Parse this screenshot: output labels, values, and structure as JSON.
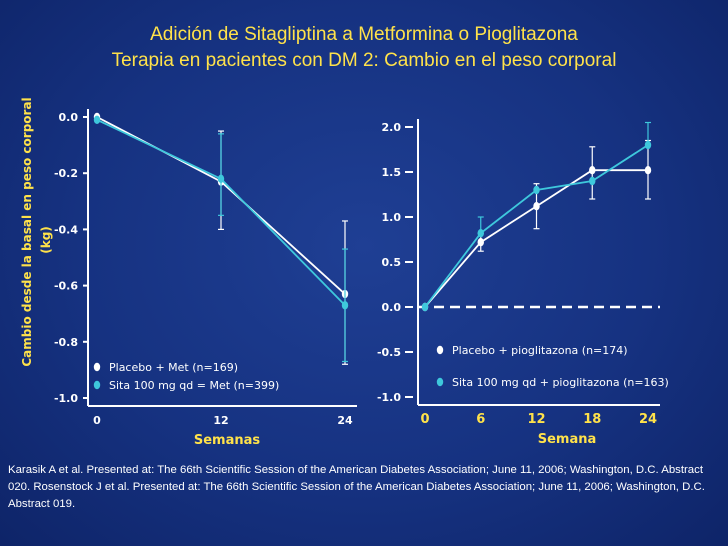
{
  "slide": {
    "title_line1": "Adición de Sitagliptina a Metformina o Pioglitazona",
    "title_line2": "Terapia en pacientes con DM 2: Cambio en el peso corporal",
    "footnote": "Karasik A et al. Presented at: The 66th Scientific Session of the American Diabetes Association; June 11, 2006; Washington, D.C. Abstract 020. Rosenstock J et al. Presented at: The 66th Scientific Session of the American Diabetes Association; June 11, 2006; Washington, D.C. Abstract 019."
  },
  "colors": {
    "placebo": "#ffffff",
    "sitagliptin": "#3ec8dc",
    "title": "#ffe24a",
    "background": "#163281"
  },
  "chart_data": [
    {
      "type": "line",
      "ylabel_line1": "Cambio desde la basal en peso corporal",
      "ylabel_line2": "(kg)",
      "xlabel": "Semanas",
      "x": [
        0,
        12,
        24
      ],
      "x_ticks": [
        "0",
        "12",
        "24"
      ],
      "y_ticks": [
        "0.0",
        "-0.2",
        "-0.4",
        "-0.6",
        "-0.8",
        "-1.0"
      ],
      "ylim": [
        -1.0,
        0.0
      ],
      "legend_position": "bottom-left",
      "series": [
        {
          "name": "Placebo + Met (n=169)",
          "color": "#ffffff",
          "values": [
            0.0,
            -0.23,
            -0.63
          ],
          "err_low": [
            0.0,
            -0.4,
            -0.88
          ],
          "err_high": [
            0.0,
            -0.05,
            -0.37
          ]
        },
        {
          "name": "Sita 100 mg qd = Met (n=399)",
          "color": "#3ec8dc",
          "values": [
            -0.01,
            -0.22,
            -0.67
          ],
          "err_low": [
            -0.01,
            -0.35,
            -0.87
          ],
          "err_high": [
            -0.01,
            -0.06,
            -0.47
          ]
        }
      ]
    },
    {
      "type": "line",
      "xlabel": "Semana",
      "x": [
        0,
        6,
        12,
        18,
        24
      ],
      "x_ticks": [
        "0",
        "6",
        "12",
        "18",
        "24"
      ],
      "y_ticks": [
        "2.0",
        "1.5",
        "1.0",
        "0.5",
        "0.0",
        "-0.5",
        "-1.0"
      ],
      "ylim": [
        -1.0,
        2.0
      ],
      "reference_line_y": 0.0,
      "legend_position": "bottom-right",
      "series": [
        {
          "name": "Placebo + pioglitazona (n=174)",
          "color": "#ffffff",
          "values": [
            0.0,
            0.72,
            1.12,
            1.52,
            1.52
          ],
          "err_low": [
            0.0,
            0.62,
            0.87,
            1.2,
            1.2
          ],
          "err_high": [
            0.0,
            0.82,
            1.37,
            1.78,
            1.85
          ]
        },
        {
          "name": "Sita 100 mg qd + pioglitazona (n=163)",
          "color": "#3ec8dc",
          "values": [
            0.0,
            0.82,
            1.3,
            1.4,
            1.8
          ],
          "err_low": [
            0.0,
            0.82,
            1.3,
            1.4,
            1.8
          ],
          "err_high": [
            0.0,
            1.0,
            1.3,
            1.4,
            2.05
          ]
        }
      ]
    }
  ]
}
